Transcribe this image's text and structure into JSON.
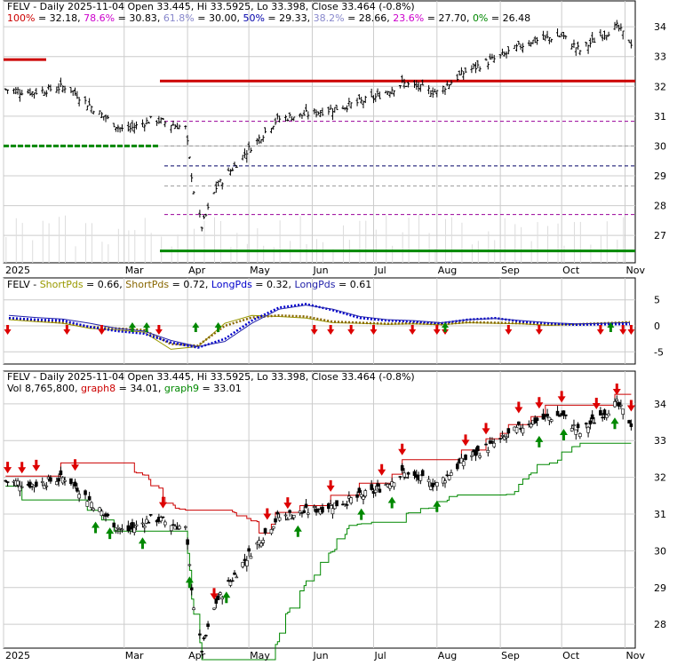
{
  "symbol": "FELV",
  "colors": {
    "price_bar": "#000000",
    "grid": "#cccccc",
    "fib_top": "#cc0000",
    "fib_bottom": "#008800",
    "fib_mid": "#990099",
    "fib_50": "#000066",
    "volume": "#dddddd",
    "short_fast": "#999900",
    "short_slow": "#886600",
    "long_fast": "#0000cc",
    "long_slow": "#2222aa",
    "buy_arrow": "#008800",
    "sell_arrow": "#dd0000",
    "stop_upper": "#cc0000",
    "stop_lower": "#008800"
  },
  "chart_data": [
    {
      "type": "candlestick",
      "panel": "price-fibonacci",
      "title": "FELV - Daily 2025-11-04 Open 33.445, Hi 33.5925, Lo 33.398, Close 33.464 (-0.8%)",
      "fib_labels": [
        {
          "label": "100% = 32.18",
          "color": "#cc0000"
        },
        {
          "label": "78.6% = 30.83",
          "color": "#cc00cc"
        },
        {
          "label": "61.8% = 30.00",
          "color": "#8888cc"
        },
        {
          "label": "50% = 29.33",
          "color": "#0000aa"
        },
        {
          "label": "38.2% = 28.66",
          "color": "#8888cc"
        },
        {
          "label": "23.6% = 27.70",
          "color": "#cc00cc"
        },
        {
          "label": "0% = 26.48",
          "color": "#008800"
        }
      ],
      "fib_levels": [
        32.18,
        30.83,
        30.0,
        29.33,
        28.66,
        27.7,
        26.48
      ],
      "y_ticks": [
        27,
        28,
        29,
        30,
        31,
        32,
        33,
        34
      ],
      "ylim": [
        26.2,
        34.6
      ],
      "x_ticks": [
        "2025",
        "Mar",
        "Apr",
        "May",
        "Jun",
        "Jul",
        "Aug",
        "Sep",
        "Oct",
        "Nov"
      ],
      "close_series": {
        "dates": [
          "2025-01-02",
          "2025-01-15",
          "2025-02-01",
          "2025-02-15",
          "2025-03-01",
          "2025-03-15",
          "2025-03-31",
          "2025-04-04",
          "2025-04-08",
          "2025-04-15",
          "2025-05-01",
          "2025-05-15",
          "2025-06-01",
          "2025-06-15",
          "2025-07-01",
          "2025-07-15",
          "2025-08-01",
          "2025-08-15",
          "2025-09-01",
          "2025-09-15",
          "2025-10-01",
          "2025-10-10",
          "2025-10-20",
          "2025-10-28",
          "2025-11-04"
        ],
        "values": [
          31.9,
          31.8,
          32.0,
          31.2,
          30.5,
          30.9,
          30.6,
          28.5,
          27.3,
          28.6,
          29.9,
          30.9,
          31.1,
          31.3,
          31.6,
          32.1,
          31.8,
          32.5,
          33.0,
          33.5,
          33.7,
          33.2,
          33.7,
          34.0,
          33.46
        ]
      }
    },
    {
      "type": "line",
      "panel": "moving-average-oscillator",
      "title": "FELV - ShortPds = 0.66, ShortPds = 0.72, LongPds = 0.32, LongPds = 0.61",
      "legend": [
        {
          "name": "ShortPds = 0.66",
          "color": "#999900"
        },
        {
          "name": "ShortPds = 0.72",
          "color": "#886600"
        },
        {
          "name": "LongPds = 0.32",
          "color": "#0000cc"
        },
        {
          "name": "LongPds = 0.61",
          "color": "#2222aa"
        }
      ],
      "y_ticks": [
        -5,
        0,
        5
      ],
      "ylim": [
        -7,
        7
      ],
      "series": [
        {
          "name": "ShortPds = 0.66",
          "values": [
            1.2,
            0.8,
            0.5,
            -0.5,
            -0.8,
            -1.2,
            -4.5,
            -4.0,
            0.5,
            2.0,
            1.8,
            1.5,
            0.6,
            0.5,
            0.3,
            0.4,
            0.2,
            0.6,
            0.5,
            0.4,
            0.1,
            0.3,
            0.5,
            0.66
          ]
        },
        {
          "name": "ShortPds = 0.72",
          "values": [
            1.5,
            1.0,
            0.6,
            -0.2,
            -0.5,
            -0.8,
            -3.5,
            -3.8,
            0.0,
            1.6,
            2.0,
            1.8,
            0.8,
            0.6,
            0.4,
            0.5,
            0.3,
            0.7,
            0.6,
            0.5,
            0.2,
            0.3,
            0.5,
            0.72
          ]
        },
        {
          "name": "LongPds = 0.32",
          "values": [
            1.5,
            1.2,
            1.0,
            -0.2,
            -1.0,
            -1.5,
            -3.2,
            -4.2,
            -2.5,
            1.0,
            3.5,
            4.2,
            3.0,
            1.5,
            1.0,
            0.8,
            0.5,
            1.2,
            1.5,
            0.8,
            0.5,
            0.2,
            0.3,
            0.32
          ]
        },
        {
          "name": "LongPds = 0.61",
          "values": [
            2.0,
            1.6,
            1.3,
            0.5,
            -0.5,
            -1.0,
            -2.8,
            -4.0,
            -3.0,
            0.5,
            3.2,
            4.0,
            3.2,
            1.8,
            1.2,
            1.0,
            0.6,
            1.2,
            1.4,
            1.0,
            0.6,
            0.4,
            0.5,
            0.61
          ]
        }
      ],
      "buy_signal_dates": [
        "2025-03-05",
        "2025-03-12",
        "2025-04-05",
        "2025-04-16",
        "2025-08-05",
        "2025-10-25"
      ],
      "sell_signal_dates": [
        "2025-01-03",
        "2025-02-01",
        "2025-02-18",
        "2025-03-18",
        "2025-06-02",
        "2025-06-10",
        "2025-06-20",
        "2025-07-01",
        "2025-07-20",
        "2025-08-01",
        "2025-08-05",
        "2025-09-05",
        "2025-09-20",
        "2025-10-20",
        "2025-10-31",
        "2025-11-04"
      ],
      "x_ticks": [
        "2025",
        "Mar",
        "Apr",
        "May",
        "Jun",
        "Jul",
        "Aug",
        "Sep",
        "Oct",
        "Nov"
      ]
    },
    {
      "type": "candlestick",
      "panel": "price-stops",
      "title": "FELV - Daily 2025-11-04 Open 33.445, Hi 33.5925, Lo 33.398, Close 33.464 (-0.8%)",
      "sub_title": [
        {
          "text": "Vol 8,765,800",
          "color": "#000000"
        },
        {
          "text": "graph8 = 34.01",
          "color": "#cc0000"
        },
        {
          "text": "graph9 = 33.01",
          "color": "#008800"
        }
      ],
      "y_ticks": [
        28,
        29,
        30,
        31,
        32,
        33,
        34
      ],
      "ylim": [
        27.4,
        34.6
      ],
      "x_ticks": [
        "2025",
        "Mar",
        "Apr",
        "May",
        "Jun",
        "Jul",
        "Aug",
        "Sep",
        "Oct",
        "Nov"
      ],
      "graph8_upper_stop": 34.01,
      "graph9_lower_stop": 33.01
    }
  ]
}
